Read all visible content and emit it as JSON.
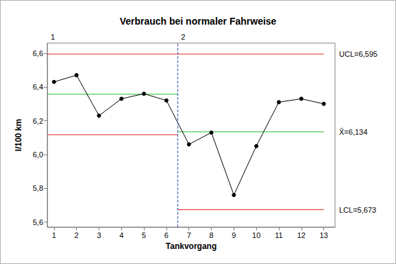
{
  "chart_data": {
    "type": "line",
    "title": "Verbrauch bei normaler Fahrweise",
    "x_label": "Tankvorgang",
    "y_label": "l/100 km",
    "series": [
      {
        "x": [
          1,
          2,
          3,
          4,
          5,
          6,
          7,
          8,
          9,
          10,
          11,
          12,
          13
        ],
        "values": [
          6.43,
          6.47,
          6.23,
          6.33,
          6.36,
          6.32,
          6.06,
          6.13,
          5.76,
          6.05,
          6.31,
          6.33,
          6.3
        ],
        "color": "#000000",
        "marker": "circle",
        "line_style": "solid"
      }
    ],
    "stages": [
      {
        "label": "1",
        "x": [
          0.7,
          6.5
        ],
        "ucl": 6.595,
        "center": 6.357,
        "lcl": 6.117
      },
      {
        "label": "2",
        "x": [
          6.5,
          13
        ],
        "ucl": 6.595,
        "center": 6.134,
        "lcl": 5.673
      }
    ],
    "limit_labels": [
      {
        "text": "UCL=6,595",
        "value": 6.595
      },
      {
        "text": "X̄=6,134",
        "value": 6.134
      },
      {
        "text": "LCL=5,673",
        "value": 5.673
      }
    ],
    "xlim": [
      0.7,
      13.5
    ],
    "xticks": [
      1,
      2,
      3,
      4,
      5,
      6,
      7,
      8,
      9,
      10,
      11,
      12,
      13
    ],
    "ylim": [
      5.57,
      6.66
    ],
    "yticks": [
      {
        "value": 5.6,
        "label": "5,6"
      },
      {
        "value": 5.8,
        "label": "5,8"
      },
      {
        "value": 6.0,
        "label": "6,0"
      },
      {
        "value": 6.2,
        "label": "6,2"
      },
      {
        "value": 6.4,
        "label": "6,4"
      },
      {
        "value": 6.6,
        "label": "6,6"
      }
    ],
    "grid": false
  }
}
